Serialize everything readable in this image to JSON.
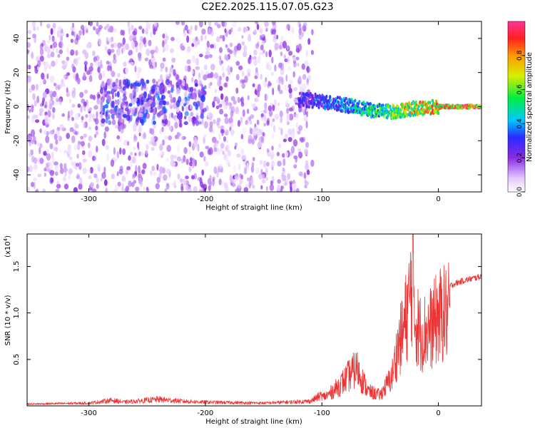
{
  "title": "C2E2.2025.115.07.05.G23",
  "chart_data": [
    {
      "type": "heatmap",
      "xlabel": "Height of straight line (km)",
      "ylabel": "Frequency (Hz)",
      "xlim": [
        -353,
        37
      ],
      "ylim": [
        -50,
        50
      ],
      "x_ticks": [
        -300,
        -200,
        -100,
        0
      ],
      "x_tick_labels": [
        "-300",
        "-200",
        "-100",
        "0"
      ],
      "y_ticks": [
        -40,
        -20,
        0,
        20,
        40
      ],
      "y_tick_labels": [
        "-40",
        "-20",
        "0",
        "20",
        "40"
      ],
      "colorbar": {
        "label": "Normalized spectral amplitude",
        "range": [
          0,
          1
        ],
        "ticks": [
          0.0,
          0.2,
          0.4,
          0.6,
          0.8
        ],
        "tick_labels": [
          "0.0",
          "0.2",
          "0.4",
          "0.6",
          "0.8"
        ]
      },
      "ridge": {
        "x": [
          -120,
          -100,
          -80,
          -60,
          -40,
          -20,
          0,
          20,
          37
        ],
        "y": [
          4,
          3,
          1,
          -2,
          -3,
          -1,
          0,
          0,
          0
        ],
        "amplitude": [
          0.3,
          0.35,
          0.45,
          0.55,
          0.7,
          0.8,
          0.9,
          1.0,
          1.0
        ]
      },
      "scatter_regions": [
        {
          "x_range": [
            -353,
            -108
          ],
          "y_range": [
            -50,
            50
          ],
          "amplitude": 0.12
        },
        {
          "x_range": [
            -290,
            -200
          ],
          "y_range": [
            -10,
            15
          ],
          "amplitude": 0.22
        }
      ]
    },
    {
      "type": "line",
      "xlabel": "Height of straight line (km)",
      "ylabel": "SNR (10 * v/v)",
      "y_multiplier": "(x10",
      "y_multiplier_exp": "4",
      "xlim": [
        -353,
        37
      ],
      "ylim": [
        0,
        1.85
      ],
      "x_ticks": [
        -300,
        -200,
        -100,
        0
      ],
      "x_tick_labels": [
        "-300",
        "-200",
        "-100",
        "0"
      ],
      "y_ticks": [
        0.5,
        1.0,
        1.5
      ],
      "y_tick_labels": [
        "0.5",
        "1.0",
        "1.5"
      ],
      "color": "#ee3333",
      "series": [
        {
          "x": [
            -353,
            -300,
            -280,
            -270,
            -240,
            -220,
            -200,
            -150,
            -110,
            -95,
            -85,
            -75,
            -70,
            -65,
            -60,
            -50,
            -40,
            -35,
            -30,
            -25,
            -22,
            -20,
            -15,
            -10,
            -5,
            0,
            10,
            20,
            30,
            37
          ],
          "values": [
            0.02,
            0.03,
            0.06,
            0.04,
            0.07,
            0.05,
            0.04,
            0.03,
            0.05,
            0.15,
            0.28,
            0.45,
            0.52,
            0.35,
            0.2,
            0.15,
            0.4,
            0.8,
            1.05,
            1.45,
            1.85,
            1.2,
            1.0,
            1.05,
            1.1,
            1.25,
            1.3,
            1.35,
            1.38,
            1.4
          ]
        }
      ]
    }
  ]
}
